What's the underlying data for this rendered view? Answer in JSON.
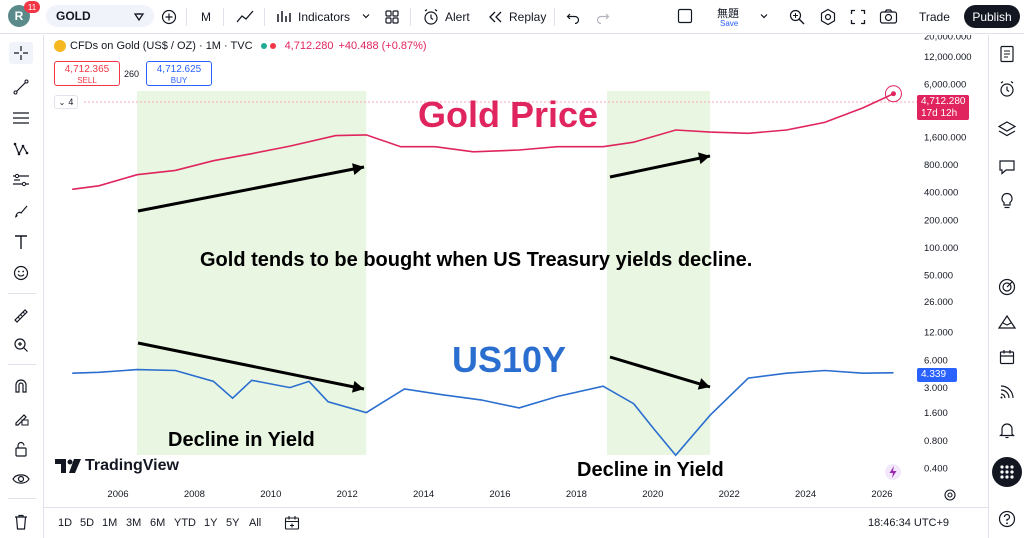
{
  "header": {
    "avatar_letter": "R",
    "notification_count": "11",
    "symbol": "GOLD",
    "interval": "M",
    "indicators_label": "Indicators",
    "alert_label": "Alert",
    "replay_label": "Replay",
    "layout_name": "無題",
    "save_label": "Save",
    "trade_label": "Trade",
    "publish_label": "Publish"
  },
  "legend": {
    "instrument": "CFDs on Gold (US$ / OZ) · 1M · TVC",
    "last_price": "4,712.280",
    "change": "+40.488 (+0.87%)",
    "sell_price": "4,712.365",
    "sell_label": "SELL",
    "spread": "260",
    "buy_price": "4,712.625",
    "buy_label": "BUY",
    "collapse_count": "4"
  },
  "price_badge": {
    "price": "4,712.280",
    "countdown": "17d 12h"
  },
  "yield_badge": {
    "value": "4.339"
  },
  "annotations": {
    "gold_title": "Gold Price",
    "us_title": "US10Y",
    "center_text": "Gold tends to be bought when US Treasury yields decline.",
    "decline_1": "Decline in Yield",
    "decline_2": "Decline in Yield"
  },
  "watermark": {
    "brand": "TradingView"
  },
  "bottom_bar": {
    "ranges": [
      "1D",
      "5D",
      "1M",
      "3M",
      "6M",
      "YTD",
      "1Y",
      "5Y",
      "All"
    ],
    "clock": "18:46:34 UTC+9"
  },
  "colors": {
    "gold_line": "#e0245e",
    "gold_line_light": "#f4a7b9",
    "yield_line": "#2a6ecf",
    "yield_line_light": "#9cc2ec",
    "highlight": "#e8f6e2",
    "sell": "#f23645",
    "buy": "#2962ff"
  },
  "chart_data": {
    "type": "line",
    "x_ticks": [
      "2006",
      "2008",
      "2010",
      "2012",
      "2014",
      "2016",
      "2018",
      "2020",
      "2022",
      "2024",
      "2026"
    ],
    "y_ticks": [
      "20,000.000",
      "12,000.000",
      "6,000.000",
      "3,000.000",
      "1,600.000",
      "800.000",
      "400.000",
      "200.000",
      "100.000",
      "50.000",
      "26.000",
      "12.000",
      "6.000",
      "3.000",
      "1.600",
      "0.800",
      "0.400"
    ],
    "y_scale": "log",
    "series": [
      {
        "x": [
          2004.8,
          2005.5,
          2006.5,
          2007.5,
          2008.5,
          2009.5,
          2010.5,
          2011.7,
          2012.5,
          2013.4,
          2014.3,
          2015.3,
          2016.5,
          2017.5,
          2018.7,
          2019.5,
          2020.6,
          2021.5,
          2022.5,
          2023.5,
          2024.5,
          2025.5,
          2026.3
        ],
        "y": [
          430,
          470,
          620,
          690,
          880,
          1050,
          1270,
          1650,
          1680,
          1250,
          1250,
          1100,
          1150,
          1250,
          1250,
          1400,
          1900,
          1800,
          1750,
          1900,
          2300,
          3300,
          4712
        ]
      },
      {
        "x": [
          2004.8,
          2005.5,
          2006.5,
          2007.5,
          2008.5,
          2009.0,
          2009.5,
          2010.5,
          2011.0,
          2011.5,
          2012.5,
          2013.5,
          2014.5,
          2015.5,
          2016.5,
          2017.5,
          2018.7,
          2019.5,
          2020.0,
          2020.6,
          2021.5,
          2022.5,
          2023.5,
          2024.5,
          2025.5,
          2026.3
        ],
        "y": [
          4.3,
          4.4,
          4.7,
          4.6,
          3.5,
          2.3,
          3.6,
          3.0,
          3.5,
          2.1,
          1.6,
          2.9,
          2.5,
          2.2,
          1.8,
          2.4,
          3.1,
          2.0,
          1.1,
          0.55,
          1.5,
          3.8,
          4.3,
          4.6,
          4.3,
          4.34
        ]
      }
    ],
    "highlight_ranges": [
      [
        2006.5,
        2012.5
      ],
      [
        2018.8,
        2021.5
      ]
    ]
  }
}
